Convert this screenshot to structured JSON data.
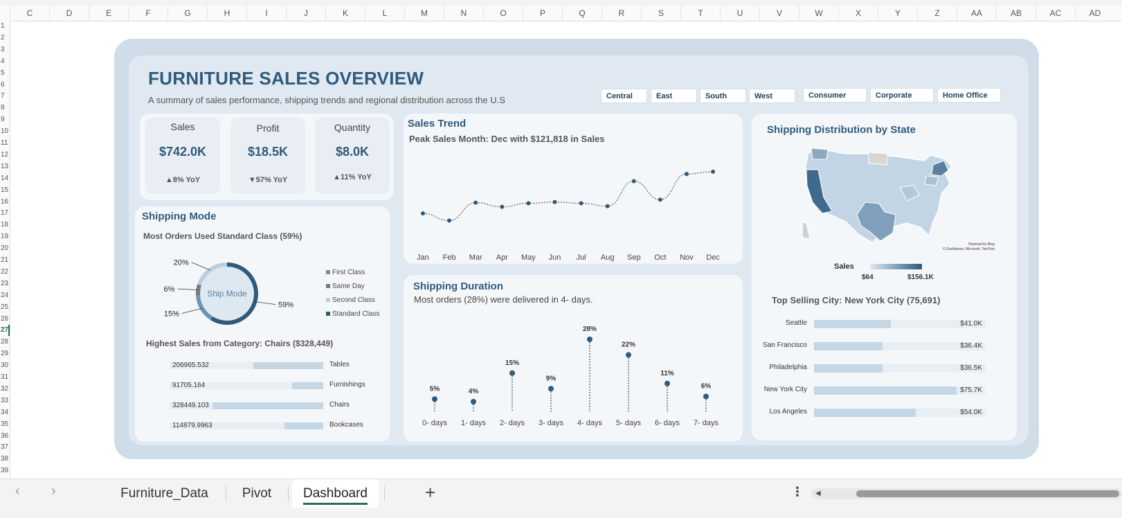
{
  "columns": [
    "C",
    "D",
    "E",
    "F",
    "G",
    "H",
    "I",
    "J",
    "K",
    "L",
    "M",
    "N",
    "O",
    "P",
    "Q",
    "R",
    "S",
    "T",
    "U",
    "V",
    "W",
    "X",
    "Y",
    "Z",
    "AA",
    "AB",
    "AC",
    "AD"
  ],
  "rows": [
    "1",
    "2",
    "3",
    "4",
    "5",
    "6",
    "7",
    "8",
    "9",
    "10",
    "11",
    "12",
    "13",
    "14",
    "15",
    "16",
    "17",
    "18",
    "19",
    "20",
    "21",
    "22",
    "23",
    "24",
    "25",
    "26",
    "27",
    "28",
    "29",
    "30",
    "31",
    "32",
    "33",
    "34",
    "35",
    "36",
    "37",
    "38",
    "39"
  ],
  "selected_row": "27",
  "dashboard": {
    "title": "FURNITURE SALES OVERVIEW",
    "subtitle": "A summary of sales performance, shipping trends and regional distribution across the U.S"
  },
  "slicers": {
    "region": [
      "Central",
      "East",
      "South",
      "West"
    ],
    "segment": [
      "Consumer",
      "Corporate",
      "Home Office"
    ]
  },
  "kpis": [
    {
      "label": "Sales",
      "value": "$742.0K",
      "yoy": "▲8% YoY"
    },
    {
      "label": "Profit",
      "value": "$18.5K",
      "yoy": "▼57% YoY"
    },
    {
      "label": "Quantity",
      "value": "$8.0K",
      "yoy": "▲11% YoY"
    }
  ],
  "sales_trend": {
    "title": "Sales Trend",
    "subtitle": "Peak Sales Month: Dec with $121,818 in Sales"
  },
  "shipping_mode": {
    "title": "Shipping Mode",
    "subtitle": "Most Orders Used Standard Class (59%)",
    "center_label": "Ship Mode",
    "slices": [
      {
        "name": "First Class",
        "label": "15%",
        "pct": 15,
        "color": "#6f93b3"
      },
      {
        "name": "Same Day",
        "label": "6%",
        "pct": 6,
        "color": "#7a7a7a"
      },
      {
        "name": "Second Class",
        "label": "20%",
        "pct": 20,
        "color": "#b8cfe0"
      },
      {
        "name": "Standard Class",
        "label": "59%",
        "pct": 59,
        "color": "#2f5a7c"
      }
    ],
    "category_title": "Highest Sales from Category: Chairs ($328,449)",
    "categories": [
      {
        "name": "Tables",
        "value": 206965.532,
        "label": "206965.532"
      },
      {
        "name": "Furnishings",
        "value": 91705.164,
        "label": "91705.164"
      },
      {
        "name": "Chairs",
        "value": 328449.103,
        "label": "328449.103"
      },
      {
        "name": "Bookcases",
        "value": 114879.9963,
        "label": "114879.9963"
      }
    ]
  },
  "shipping_duration": {
    "title": "Shipping Duration",
    "subtitle": "Most orders (28%) were delivered in 4- days."
  },
  "state_map": {
    "title": "Shipping Distribution by State",
    "legend_label": "Sales",
    "legend_min": "$64",
    "legend_max": "$156.1K",
    "attribution_line1": "Powered by Bing",
    "attribution_line2": "© GeoNames, Microsoft, TomTom",
    "top_city": "Top Selling City: New York City (75,691)",
    "cities": [
      {
        "name": "Seattle",
        "value": 41.0,
        "label": "$41.0K"
      },
      {
        "name": "San Francisco",
        "value": 36.4,
        "label": "$36.4K"
      },
      {
        "name": "Philadelphia",
        "value": 36.5,
        "label": "$36.5K"
      },
      {
        "name": "New York City",
        "value": 75.7,
        "label": "$75.7K"
      },
      {
        "name": "Los Angeles",
        "value": 54.0,
        "label": "$54.0K"
      }
    ]
  },
  "sheet_tabs": [
    {
      "label": "Furniture_Data",
      "active": false
    },
    {
      "label": "Pivot",
      "active": false
    },
    {
      "label": "Dashboard",
      "active": true
    }
  ],
  "chart_data": [
    {
      "type": "line",
      "title": "Sales Trend",
      "categories": [
        "Jan",
        "Feb",
        "Mar",
        "Apr",
        "May",
        "Jun",
        "Jul",
        "Aug",
        "Sep",
        "Oct",
        "Nov",
        "Dec"
      ],
      "values": [
        52000,
        40000,
        70000,
        63000,
        69000,
        71000,
        69000,
        64000,
        106000,
        75000,
        118000,
        121818
      ],
      "ylim": [
        0,
        160000
      ]
    },
    {
      "type": "bar",
      "title": "Shipping Duration",
      "categories": [
        "0- days",
        "1- days",
        "2- days",
        "3- days",
        "4- days",
        "5- days",
        "6- days",
        "7- days"
      ],
      "values": [
        5,
        4,
        15,
        9,
        28,
        22,
        11,
        6
      ],
      "labels": [
        "5%",
        "4%",
        "15%",
        "9%",
        "28%",
        "22%",
        "11%",
        "6%"
      ],
      "ylim": [
        0,
        30
      ]
    },
    {
      "type": "pie",
      "title": "Ship Mode",
      "categories": [
        "First Class",
        "Same Day",
        "Second Class",
        "Standard Class"
      ],
      "values": [
        15,
        6,
        20,
        59
      ]
    },
    {
      "type": "bar",
      "title": "Sales by Category",
      "categories": [
        "Tables",
        "Furnishings",
        "Chairs",
        "Bookcases"
      ],
      "values": [
        206965.532,
        91705.164,
        328449.103,
        114879.9963
      ]
    },
    {
      "type": "bar",
      "title": "Top Selling Cities",
      "categories": [
        "Seattle",
        "San Francisco",
        "Philadelphia",
        "New York City",
        "Los Angeles"
      ],
      "values": [
        41.0,
        36.4,
        36.5,
        75.7,
        54.0
      ]
    }
  ]
}
